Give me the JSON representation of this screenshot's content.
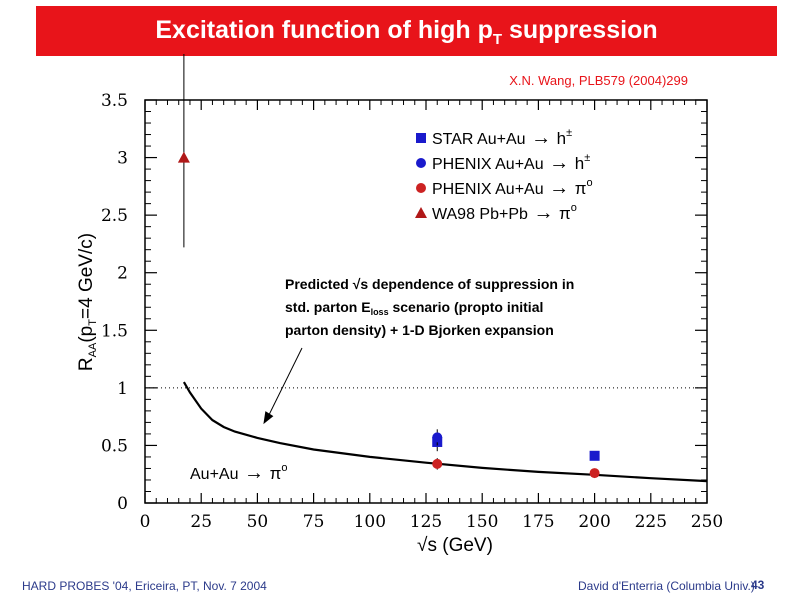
{
  "slide": {
    "title_main": "Excitation function of high p",
    "title_sub": "T",
    "title_tail": " suppression",
    "reference": "X.N. Wang, PLB579 (2004)299",
    "footer_left": "HARD PROBES '04, Ericeira, PT, Nov. 7 2004",
    "footer_right": "David d'Enterria (Columbia Univ.)",
    "page_number": "43",
    "colors": {
      "title_bar": "#e8141a",
      "footer_text": "#2b3a8a"
    }
  },
  "chart_data": {
    "type": "scatter",
    "xlabel": "√s (GeV)",
    "ylabel_parts": {
      "main": "R",
      "sub": "AA",
      "rest": "(p",
      "sub2": "T",
      "tail": "=4 GeV/c)"
    },
    "xlim": [
      0,
      250
    ],
    "ylim": [
      0,
      3.5
    ],
    "x_ticks": [
      0,
      25,
      50,
      75,
      100,
      125,
      150,
      175,
      200,
      225,
      250
    ],
    "y_ticks": [
      0,
      0.5,
      1,
      1.5,
      2,
      2.5,
      3,
      3.5
    ],
    "y_tick_labels": [
      "0",
      "0.5",
      "1",
      "1.5",
      "2",
      "2.5",
      "3",
      "3.5"
    ],
    "reference_line": {
      "y": 1,
      "style": "dotted"
    },
    "series": [
      {
        "name": "STAR Au+Au → h±",
        "marker": "square",
        "color": "#1a1acc",
        "points": [
          {
            "x": 130,
            "y": 0.53,
            "err": 0.08
          },
          {
            "x": 200,
            "y": 0.41,
            "err": 0.03
          }
        ]
      },
      {
        "name": "PHENIX Au+Au → h±",
        "marker": "circle",
        "color": "#1a1acc",
        "points": [
          {
            "x": 130,
            "y": 0.57,
            "err": 0.07
          }
        ]
      },
      {
        "name": "PHENIX Au+Au → π0",
        "marker": "circle",
        "color": "#cc2222",
        "points": [
          {
            "x": 130,
            "y": 0.34,
            "err": 0.05
          },
          {
            "x": 200,
            "y": 0.26,
            "err": 0.03
          }
        ]
      },
      {
        "name": "WA98 Pb+Pb → π0",
        "marker": "triangle",
        "color": "#b01818",
        "points": [
          {
            "x": 17.3,
            "y": 3.0,
            "err_low": 0.78,
            "err_high": 0.9
          }
        ]
      }
    ],
    "curve": {
      "label": "Au+Au → π0",
      "points": [
        [
          17.3,
          1.05
        ],
        [
          20,
          0.96
        ],
        [
          25,
          0.82
        ],
        [
          30,
          0.72
        ],
        [
          35,
          0.66
        ],
        [
          40,
          0.62
        ],
        [
          50,
          0.565
        ],
        [
          60,
          0.52
        ],
        [
          75,
          0.465
        ],
        [
          100,
          0.4
        ],
        [
          125,
          0.35
        ],
        [
          150,
          0.305
        ],
        [
          175,
          0.27
        ],
        [
          200,
          0.245
        ],
        [
          225,
          0.215
        ],
        [
          250,
          0.19
        ]
      ]
    },
    "legend": {
      "items": [
        {
          "label": "STAR Au+Au",
          "target": "h",
          "sup": "±"
        },
        {
          "label": "PHENIX Au+Au",
          "target": "h",
          "sup": "±"
        },
        {
          "label": "PHENIX Au+Au",
          "target": "π",
          "sup": "o"
        },
        {
          "label": "WA98 Pb+Pb",
          "target": "π",
          "sup": "o"
        }
      ],
      "arrow_symbol": "→",
      "placement": "top-right"
    },
    "annotation": {
      "line1": "Predicted √s dependence of suppression in",
      "line2a": "std. parton E",
      "line2sub": "loss",
      "line2b": " scenario (propto initial",
      "line3": "parton density) + 1-D Bjorken expansion",
      "arrow_to": {
        "x": 54,
        "y": 0.72
      }
    },
    "curve_label": {
      "text": "Au+Au",
      "arrow": "→",
      "target": "π",
      "sup": "o"
    }
  }
}
